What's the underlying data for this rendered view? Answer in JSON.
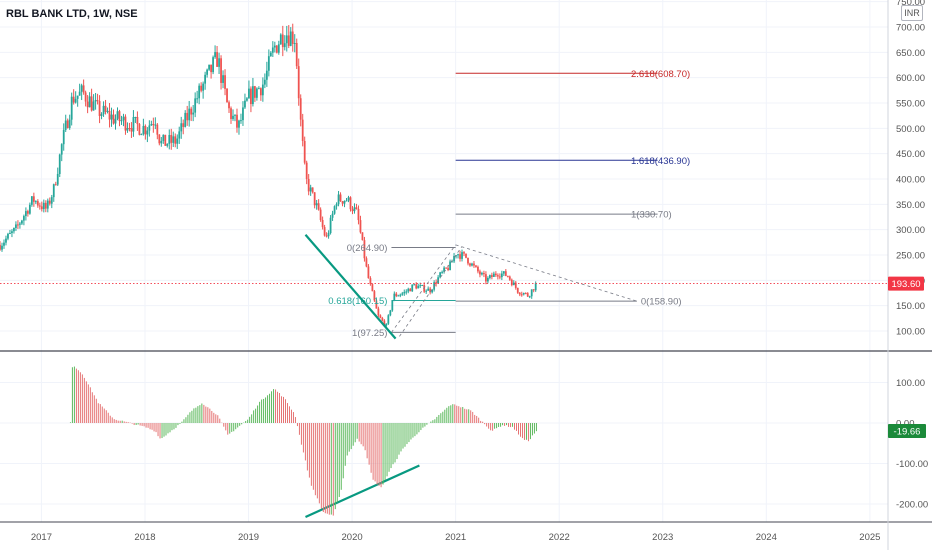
{
  "header": {
    "title": "RBL BANK LTD, 1W, NSE",
    "unit_label": "INR"
  },
  "colors": {
    "up": "#26a69a",
    "down": "#ef5350",
    "line": "#2962ff",
    "fib_2618": "#c62828",
    "fib_1618": "#283593",
    "fib_1": "#787b86",
    "fib_0618": "#26a69a",
    "trendline": "#089981",
    "price_tag": "#f23645",
    "osc_tag": "#1b8a3a"
  },
  "chart_data": [
    {
      "type": "candlestick",
      "title": "RBL BANK LTD, 1W, NSE",
      "x_range": [
        "2016-06",
        "2025-06"
      ],
      "y_range": [
        55,
        750
      ],
      "x_ticks": [
        "2017",
        "2018",
        "2019",
        "2020",
        "2021",
        "2022",
        "2023",
        "2024",
        "2025"
      ],
      "y_ticks": [
        "100.00",
        "150.00",
        "200.00",
        "250.00",
        "300.00",
        "350.00",
        "400.00",
        "450.00",
        "500.00",
        "550.00",
        "600.00",
        "650.00",
        "700.00",
        "750.00"
      ],
      "last_price": "193.60",
      "price_path": [
        [
          2016.6,
          270
        ],
        [
          2016.75,
          300
        ],
        [
          2016.92,
          360
        ],
        [
          2017.05,
          340
        ],
        [
          2017.12,
          380
        ],
        [
          2017.2,
          470
        ],
        [
          2017.3,
          560
        ],
        [
          2017.4,
          570
        ],
        [
          2017.55,
          535
        ],
        [
          2017.7,
          520
        ],
        [
          2017.85,
          510
        ],
        [
          2018.0,
          500
        ],
        [
          2018.1,
          520
        ],
        [
          2018.15,
          470
        ],
        [
          2018.3,
          475
        ],
        [
          2018.45,
          540
        ],
        [
          2018.6,
          600
        ],
        [
          2018.7,
          640
        ],
        [
          2018.8,
          540
        ],
        [
          2018.9,
          500
        ],
        [
          2019.0,
          560
        ],
        [
          2019.15,
          590
        ],
        [
          2019.25,
          660
        ],
        [
          2019.35,
          690
        ],
        [
          2019.45,
          680
        ],
        [
          2019.5,
          520
        ],
        [
          2019.55,
          400
        ],
        [
          2019.65,
          350
        ],
        [
          2019.75,
          280
        ],
        [
          2019.85,
          360
        ],
        [
          2019.95,
          360
        ],
        [
          2020.05,
          330
        ],
        [
          2020.15,
          210
        ],
        [
          2020.25,
          130
        ],
        [
          2020.33,
          110
        ],
        [
          2020.4,
          170
        ],
        [
          2020.5,
          175
        ],
        [
          2020.6,
          190
        ],
        [
          2020.75,
          180
        ],
        [
          2020.85,
          210
        ],
        [
          2020.95,
          230
        ],
        [
          2021.0,
          255
        ],
        [
          2021.1,
          245
        ],
        [
          2021.2,
          220
        ],
        [
          2021.3,
          200
        ],
        [
          2021.4,
          215
        ],
        [
          2021.5,
          210
        ],
        [
          2021.6,
          180
        ],
        [
          2021.7,
          170
        ],
        [
          2021.78,
          193.6
        ]
      ],
      "fib_levels": [
        {
          "label": "2.618(608.70)",
          "value": 608.7
        },
        {
          "label": "1.618(436.90)",
          "value": 436.9
        },
        {
          "label": "1(330.70)",
          "value": 330.7
        },
        {
          "label": "0(264.90)",
          "value": 264.9
        },
        {
          "label": "0.618(160.15)",
          "value": 160.15
        },
        {
          "label": "0(158.90)",
          "value": 158.9
        },
        {
          "label": "1(97.25)",
          "value": 97.25
        }
      ]
    },
    {
      "type": "bar",
      "name": "oscillator",
      "y_range": [
        -235,
        160
      ],
      "y_ticks": [
        "100.00",
        "0.00",
        "-100.00",
        "-200.00"
      ],
      "last_value": "-19.66",
      "osc_path": [
        [
          2017.28,
          0
        ],
        [
          2017.3,
          145
        ],
        [
          2017.4,
          120
        ],
        [
          2017.55,
          50
        ],
        [
          2017.7,
          10
        ],
        [
          2017.85,
          0
        ],
        [
          2018.0,
          -10
        ],
        [
          2018.1,
          -20
        ],
        [
          2018.15,
          -40
        ],
        [
          2018.25,
          -20
        ],
        [
          2018.35,
          0
        ],
        [
          2018.45,
          30
        ],
        [
          2018.55,
          50
        ],
        [
          2018.7,
          20
        ],
        [
          2018.8,
          -30
        ],
        [
          2018.9,
          -10
        ],
        [
          2019.0,
          10
        ],
        [
          2019.1,
          50
        ],
        [
          2019.25,
          85
        ],
        [
          2019.35,
          60
        ],
        [
          2019.45,
          20
        ],
        [
          2019.5,
          -40
        ],
        [
          2019.6,
          -150
        ],
        [
          2019.72,
          -220
        ],
        [
          2019.82,
          -230
        ],
        [
          2019.9,
          -160
        ],
        [
          2019.95,
          -80
        ],
        [
          2020.05,
          -40
        ],
        [
          2020.12,
          -60
        ],
        [
          2020.2,
          -140
        ],
        [
          2020.28,
          -160
        ],
        [
          2020.38,
          -110
        ],
        [
          2020.5,
          -60
        ],
        [
          2020.65,
          -20
        ],
        [
          2020.8,
          10
        ],
        [
          2020.95,
          45
        ],
        [
          2021.0,
          45
        ],
        [
          2021.15,
          30
        ],
        [
          2021.25,
          5
        ],
        [
          2021.35,
          -20
        ],
        [
          2021.45,
          -5
        ],
        [
          2021.55,
          -10
        ],
        [
          2021.65,
          -40
        ],
        [
          2021.7,
          -45
        ],
        [
          2021.78,
          -19.66
        ]
      ]
    }
  ]
}
